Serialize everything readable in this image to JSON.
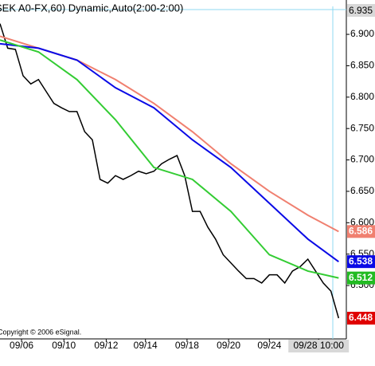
{
  "chart_data": {
    "type": "line",
    "title": "SEK A0-FX,60) Dynamic,Auto(2:00-2:00)",
    "cursor_price": "6.935",
    "copyright": "Copyright © 2006 eSignal.",
    "x": [
      0,
      1,
      2,
      3,
      4,
      5,
      6,
      7,
      8,
      9,
      10,
      11,
      12,
      13,
      14,
      15,
      16,
      17,
      18,
      19,
      20,
      21,
      22,
      23,
      24,
      25,
      26,
      27,
      28,
      29,
      30,
      31,
      32,
      33,
      34,
      35,
      36,
      37,
      38,
      39,
      40,
      41,
      42,
      43,
      44
    ],
    "xlim": [
      0,
      45
    ],
    "xticks": [
      {
        "value": 2.8,
        "label": "09/06"
      },
      {
        "value": 8.3,
        "label": "09/10"
      },
      {
        "value": 13.8,
        "label": "09/12"
      },
      {
        "value": 18.9,
        "label": "09/14"
      },
      {
        "value": 24.3,
        "label": "09/18"
      },
      {
        "value": 29.7,
        "label": "09/20"
      },
      {
        "value": 35,
        "label": "09/24"
      },
      {
        "value": 41.4,
        "label": "09/28 10:00"
      }
    ],
    "ylim": [
      6.415,
      6.942
    ],
    "yticks": [
      {
        "value": 6.9,
        "label": "6.900"
      },
      {
        "value": 6.85,
        "label": "6.850"
      },
      {
        "value": 6.8,
        "label": "6.800"
      },
      {
        "value": 6.75,
        "label": "6.750"
      },
      {
        "value": 6.7,
        "label": "6.700"
      },
      {
        "value": 6.65,
        "label": "6.650"
      },
      {
        "value": 6.6,
        "label": "6.600"
      },
      {
        "value": 6.55,
        "label": "6.550"
      },
      {
        "value": 6.5,
        "label": "6.500"
      }
    ],
    "series": [
      {
        "color": "#000000",
        "label_color": "#e00000",
        "values": [
          6.917,
          6.878,
          6.876,
          6.834,
          6.821,
          6.828,
          6.809,
          6.79,
          6.783,
          6.777,
          6.777,
          6.745,
          6.732,
          6.669,
          6.663,
          6.675,
          6.669,
          6.675,
          6.682,
          6.678,
          6.682,
          6.694,
          6.701,
          6.707,
          6.675,
          6.618,
          6.618,
          6.593,
          6.574,
          6.549,
          6.536,
          6.523,
          6.511,
          6.511,
          6.504,
          6.517,
          6.517,
          6.504,
          6.523,
          6.53,
          6.542,
          6.523,
          6.504,
          6.491,
          6.448
        ]
      },
      {
        "color": "#f08070",
        "label_color": "#f08070",
        "x": [
          0,
          5,
          10,
          15,
          20,
          25,
          30,
          35,
          40,
          44
        ],
        "values": [
          6.897,
          6.878,
          6.859,
          6.828,
          6.79,
          6.745,
          6.694,
          6.65,
          6.612,
          6.586
        ]
      },
      {
        "color": "#0a0ae6",
        "label_color": "#0a0ae6",
        "x": [
          0,
          5,
          10,
          15,
          20,
          25,
          30,
          35,
          40,
          44
        ],
        "values": [
          6.885,
          6.878,
          6.859,
          6.815,
          6.783,
          6.732,
          6.688,
          6.631,
          6.574,
          6.538
        ]
      },
      {
        "color": "#33cc33",
        "label_color": "#22bb22",
        "x": [
          0,
          5,
          10,
          15,
          20,
          25,
          30,
          35,
          40,
          44
        ],
        "values": [
          6.891,
          6.872,
          6.828,
          6.764,
          6.688,
          6.669,
          6.618,
          6.549,
          6.523,
          6.512
        ]
      }
    ]
  }
}
